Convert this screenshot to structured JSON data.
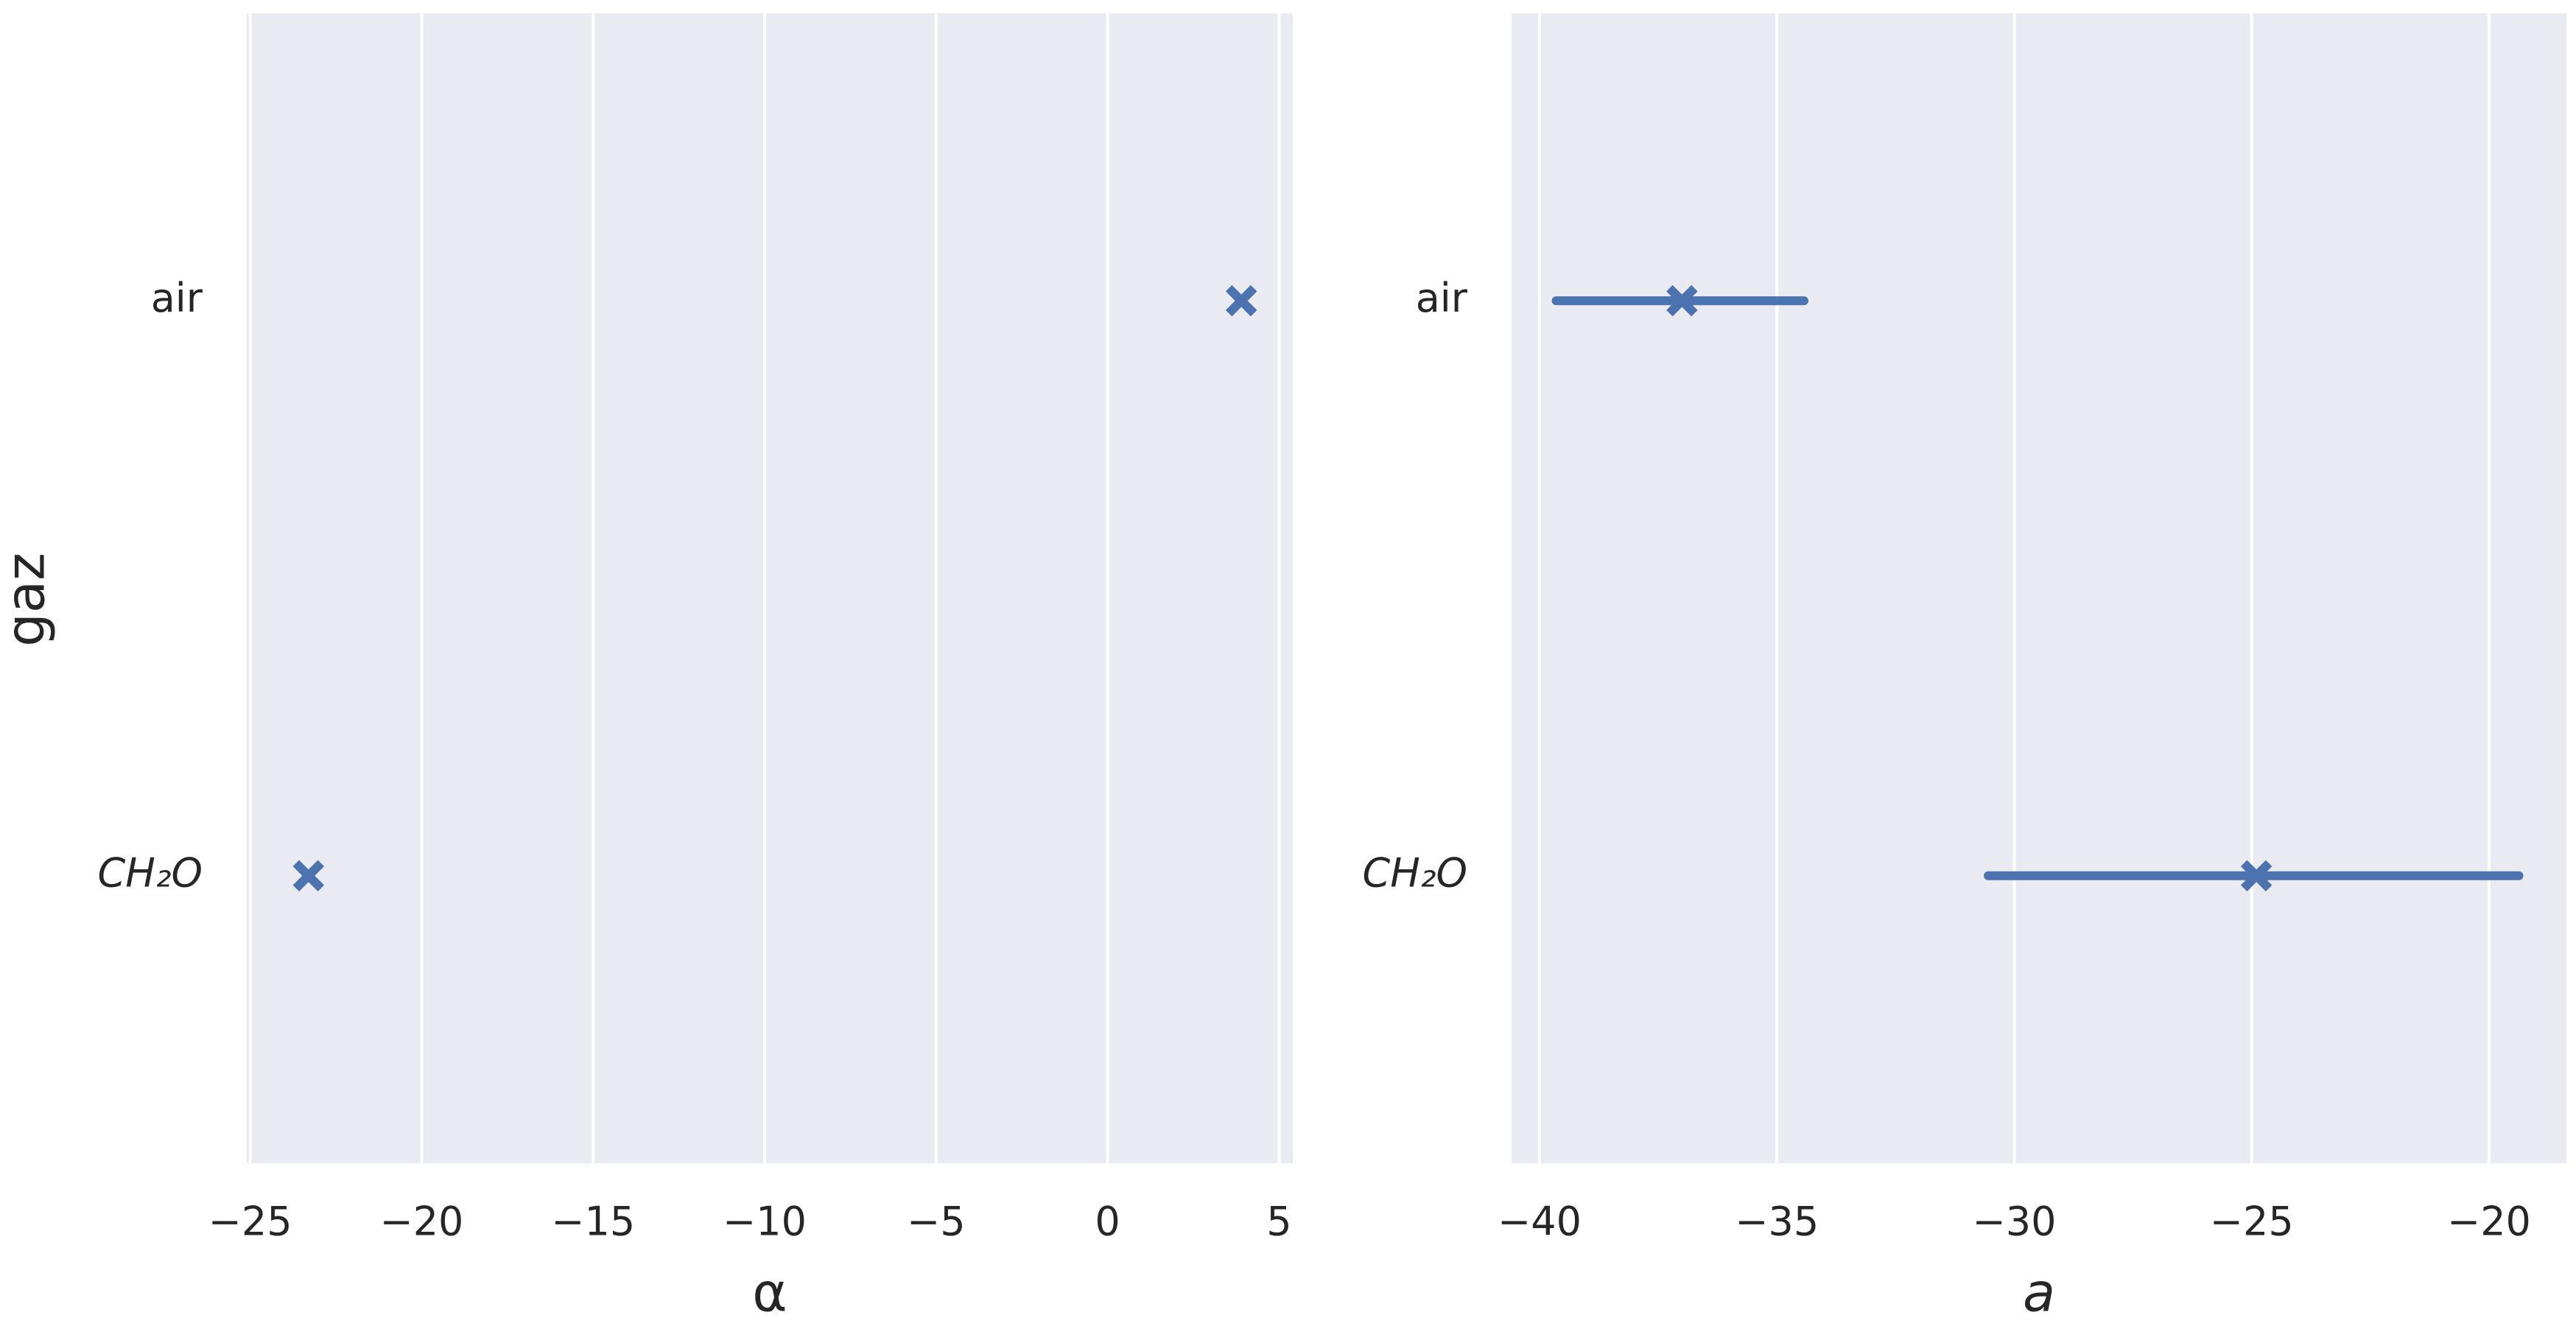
{
  "chart_data": [
    {
      "type": "point",
      "ylabel": "gaz",
      "xlabel": "α",
      "categories": [
        "air",
        "CH₂O"
      ],
      "series": [
        {
          "color": "#4c72b0",
          "values": [
            3.9,
            -23.3
          ]
        }
      ],
      "xlim": [
        -25.1,
        5.4
      ],
      "xticks": [
        {
          "value": -25,
          "label": "−25"
        },
        {
          "value": -20,
          "label": "−20"
        },
        {
          "value": -15,
          "label": "−15"
        },
        {
          "value": -10,
          "label": "−10"
        },
        {
          "value": -5,
          "label": "−5"
        },
        0,
        5
      ],
      "grid": true
    },
    {
      "type": "point",
      "xlabel": "a",
      "categories": [
        "air",
        "CH₂O"
      ],
      "series": [
        {
          "color": "#4c72b0",
          "values": [
            -37.0,
            -24.9
          ],
          "ci": [
            [
              -39.65,
              -34.43
            ],
            [
              -30.55,
              -19.37
            ]
          ]
        }
      ],
      "xlim": [
        -40.59,
        -18.37
      ],
      "xticks": [
        {
          "value": -40,
          "label": "−40"
        },
        {
          "value": -35,
          "label": "−35"
        },
        {
          "value": -30,
          "label": "−30"
        },
        {
          "value": -25,
          "label": "−25"
        },
        {
          "value": -20,
          "label": "−20"
        }
      ],
      "grid": true
    }
  ]
}
